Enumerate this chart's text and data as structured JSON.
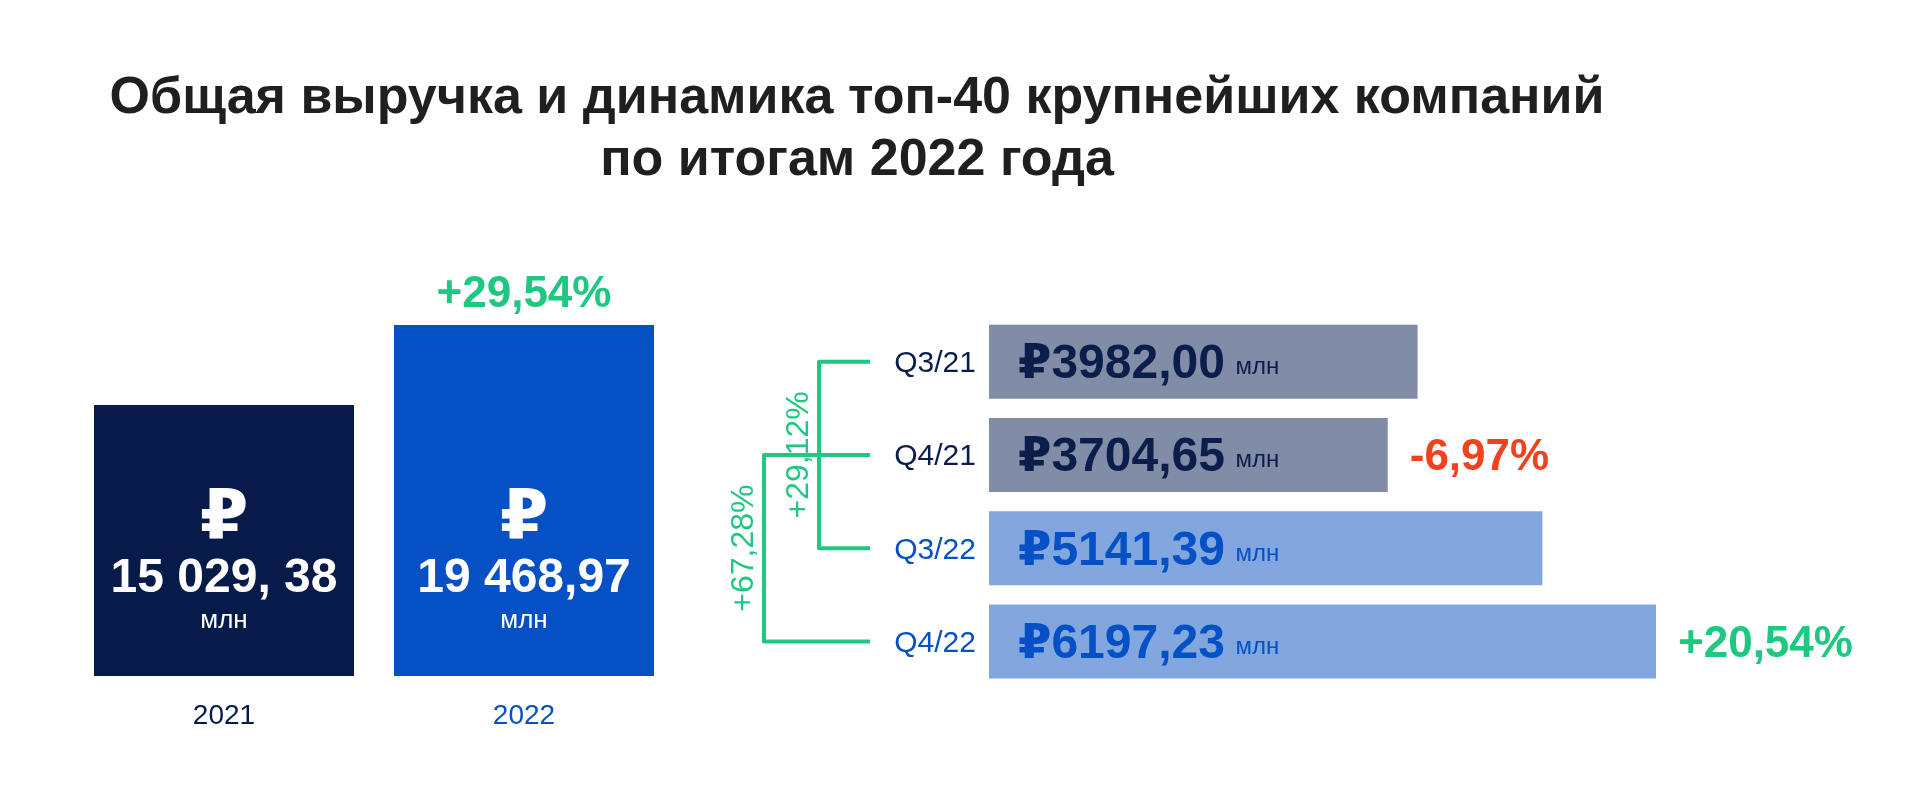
{
  "chart_data": [
    {
      "type": "bar",
      "title": "Общая выручка и динамика топ-40 крупнейших компаний по итогам 2022 года",
      "categories": [
        "2021",
        "2022"
      ],
      "values": [
        15029.38,
        19468.97
      ],
      "colors": [
        "#061b4a",
        "#0550c4"
      ],
      "value_labels": [
        "₽\n15 029, 38\nмлн",
        "₽\n19 468,97\nмлн"
      ],
      "tick_labels": "x",
      "annotations": [
        {
          "text": "+29,54%",
          "x": "2022",
          "y": 19468.97
        }
      ]
    },
    {
      "type": "bar",
      "orientation": "horizontal",
      "categories": [
        "Q3/21",
        "Q4/21",
        "Q3/22",
        "Q4/22"
      ],
      "values": [
        3982.0,
        3704.65,
        5141.39,
        6197.23
      ],
      "colors": [
        "#818da6",
        "#818da6",
        "#81a7de",
        "#81a7de"
      ],
      "value_labels": [
        "₽3982,00 млн",
        "₽3704,65 млн",
        "₽5141,39 млн",
        "₽6197,23 млн"
      ],
      "tick_labels": "y",
      "annotations": [
        {
          "text": "-6,97%",
          "x": 3704.65,
          "y": "Q4/21"
        },
        {
          "text": "+20,54%",
          "x": 6197.23,
          "y": "Q4/22"
        },
        "+29,12%",
        "+67,28%"
      ]
    }
  ]
}
